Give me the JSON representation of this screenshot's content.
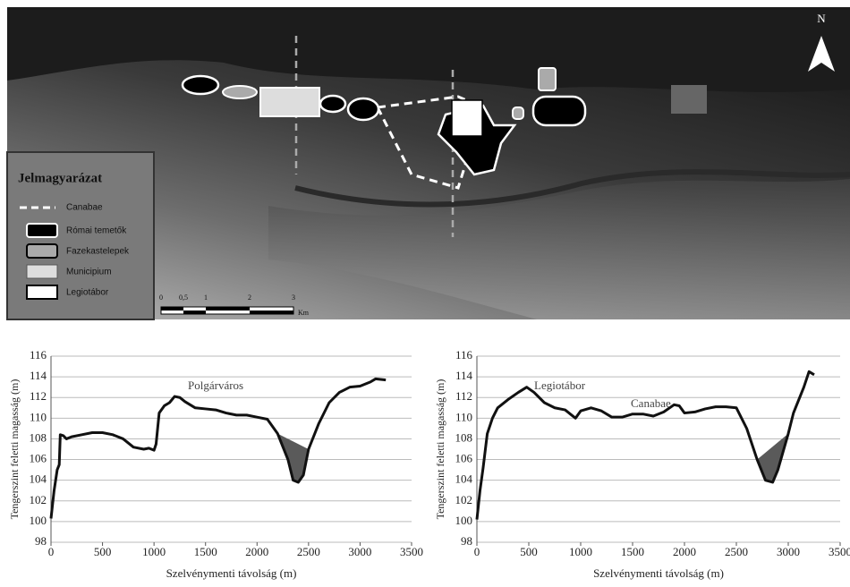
{
  "map": {
    "north": "N",
    "legend": {
      "title": "Jelmagyarázat",
      "items": [
        "Canabae",
        "Római temetők",
        "Fazekastelepek",
        "Municipium",
        "Legiotábor"
      ]
    },
    "scale": {
      "labels": [
        "0",
        "0,5",
        "1",
        "2",
        "3"
      ],
      "unit": "Km"
    }
  },
  "chart_data": [
    {
      "type": "line",
      "xlabel": "Szelvénymenti távolság (m)",
      "ylabel": "Tengerszint feletti magasság (m)",
      "annotations": [
        "Polgárváros"
      ],
      "xlim": [
        0,
        3500
      ],
      "xticks": [
        0,
        500,
        1000,
        1500,
        2000,
        2500,
        3000,
        3500
      ],
      "ylim": [
        98,
        116
      ],
      "yticks": [
        98,
        100,
        102,
        104,
        106,
        108,
        110,
        112,
        114,
        116
      ],
      "grid": true,
      "series": [
        {
          "color": "#111111",
          "x": [
            0,
            30,
            60,
            80,
            90,
            120,
            150,
            200,
            300,
            400,
            500,
            600,
            700,
            800,
            900,
            950,
            1000,
            1020,
            1050,
            1100,
            1150,
            1200,
            1250,
            1300,
            1400,
            1500,
            1600,
            1700,
            1800,
            1900,
            2000,
            2100,
            2200,
            2300,
            2350,
            2400,
            2450,
            2500,
            2600,
            2700,
            2800,
            2900,
            3000,
            3100,
            3150,
            3250
          ],
          "values": [
            100.3,
            103,
            105,
            105.5,
            108.4,
            108.3,
            108,
            108.2,
            108.4,
            108.6,
            108.6,
            108.4,
            108,
            107.2,
            107,
            107.1,
            106.9,
            107.5,
            110.5,
            111.2,
            111.5,
            112.1,
            112,
            111.6,
            111,
            110.9,
            110.8,
            110.5,
            110.3,
            110.3,
            110.1,
            109.9,
            108.5,
            106,
            104,
            103.8,
            104.5,
            107,
            109.5,
            111.5,
            112.5,
            113,
            113.1,
            113.5,
            113.8,
            113.7
          ]
        }
      ]
    },
    {
      "type": "line",
      "xlabel": "Szelvénymenti távolság (m)",
      "ylabel": "Tengerszint feletti magasság (m)",
      "annotations": [
        "Legiotábor",
        "Canabae"
      ],
      "xlim": [
        0,
        3500
      ],
      "xticks": [
        0,
        500,
        1000,
        1500,
        2000,
        2500,
        3000,
        3500
      ],
      "ylim": [
        98,
        116
      ],
      "yticks": [
        98,
        100,
        102,
        104,
        106,
        108,
        110,
        112,
        114,
        116
      ],
      "grid": true,
      "series": [
        {
          "color": "#111111",
          "x": [
            0,
            30,
            60,
            100,
            150,
            200,
            300,
            400,
            480,
            550,
            650,
            750,
            850,
            950,
            1000,
            1100,
            1200,
            1300,
            1400,
            1500,
            1600,
            1700,
            1800,
            1900,
            1950,
            2000,
            2100,
            2200,
            2300,
            2400,
            2500,
            2600,
            2700,
            2780,
            2850,
            2900,
            3000,
            3050,
            3150,
            3200,
            3250
          ],
          "values": [
            100.2,
            103,
            105.2,
            108.5,
            110,
            111,
            111.8,
            112.5,
            113,
            112.5,
            111.5,
            111,
            110.8,
            110,
            110.7,
            111,
            110.7,
            110.1,
            110.1,
            110.4,
            110.4,
            110.2,
            110.6,
            111.3,
            111.2,
            110.5,
            110.6,
            110.9,
            111.1,
            111.1,
            111,
            109,
            106,
            104,
            103.8,
            105,
            108.5,
            110.5,
            113,
            114.5,
            114.2
          ]
        }
      ]
    }
  ]
}
